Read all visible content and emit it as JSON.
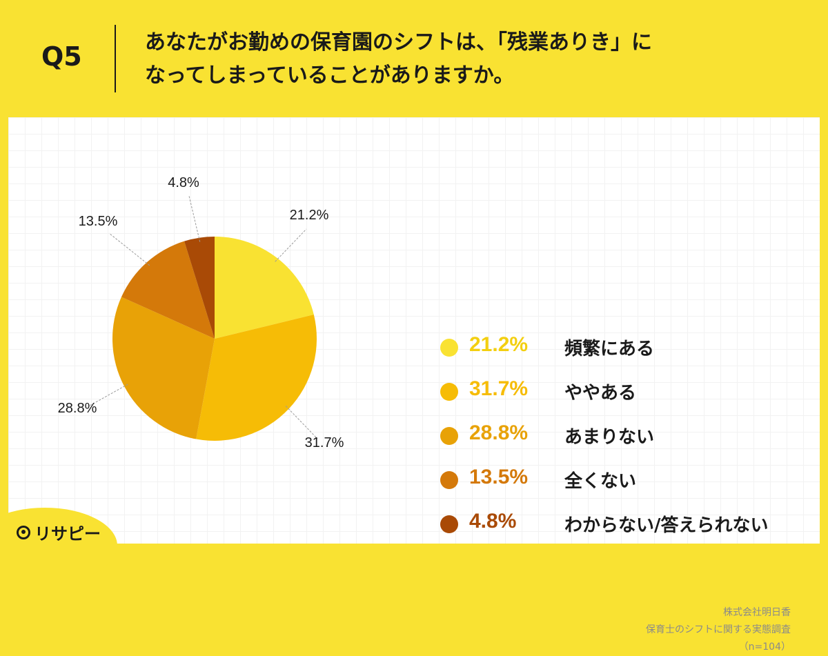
{
  "header": {
    "q_label": "Q5",
    "question_line1": "あなたがお勤めの保育園のシフトは、「残業ありき」に",
    "question_line2": "なってしまっていることがありますか。"
  },
  "chart_data": {
    "type": "pie",
    "categories": [
      "頻繁にある",
      "ややある",
      "あまりない",
      "全くない",
      "わからない/答えられない"
    ],
    "values": [
      21.2,
      31.7,
      28.8,
      13.5,
      4.8
    ],
    "value_labels": [
      "21.2%",
      "31.7%",
      "28.8%",
      "13.5%",
      "4.8%"
    ],
    "colors": [
      "#f9e232",
      "#f6bc06",
      "#e8a207",
      "#d4790a",
      "#a94a06"
    ],
    "legend_colors": [
      "#f9e232",
      "#f6bc06",
      "#e8a207",
      "#d4790a",
      "#a94a06"
    ],
    "start_angle_deg": 0,
    "direction": "clockwise",
    "legend_placement": "right"
  },
  "source": {
    "company": "株式会社明日香",
    "survey": "保育士のシフトに関する実態調査",
    "sample": "（n=104）"
  },
  "logo": {
    "text": "リサピー",
    "icon": "pin-icon"
  }
}
